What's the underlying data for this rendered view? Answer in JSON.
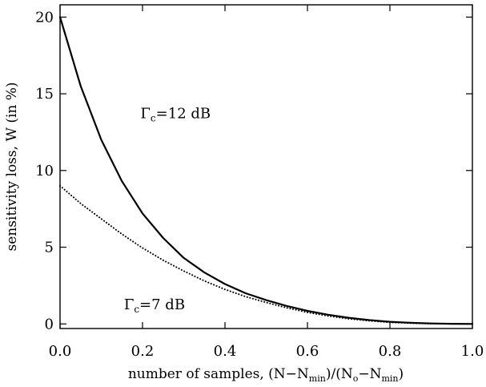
{
  "chart_data": {
    "type": "line",
    "title": "",
    "xlabel": "number of samples, (N−N_min)/(N_o−N_min)",
    "xlabel_parts": {
      "prefix": "number of samples, (N−N",
      "sub1": "min",
      "mid": ")/(N",
      "sub2": "o",
      "mid2": "−N",
      "sub3": "min",
      "suffix": ")"
    },
    "ylabel": "sensitivity loss, W (in %)",
    "xlim": [
      0.0,
      1.0
    ],
    "ylim": [
      -0.3,
      20.8
    ],
    "xticks": [
      0.0,
      0.2,
      0.4,
      0.6,
      0.8,
      1.0
    ],
    "xtick_labels": [
      "0.0",
      "0.2",
      "0.4",
      "0.6",
      "0.8",
      "1.0"
    ],
    "yticks": [
      0,
      5,
      10,
      15,
      20
    ],
    "ytick_labels": [
      "0",
      "5",
      "10",
      "15",
      "20"
    ],
    "grid": false,
    "legend": "none",
    "series": [
      {
        "style": "solid",
        "color": "#000000",
        "x": [
          0.0,
          0.05,
          0.1,
          0.15,
          0.2,
          0.25,
          0.3,
          0.35,
          0.4,
          0.45,
          0.5,
          0.55,
          0.6,
          0.65,
          0.7,
          0.75,
          0.8,
          0.85,
          0.9,
          0.95,
          1.0
        ],
        "y": [
          20.0,
          15.5,
          12.0,
          9.3,
          7.2,
          5.6,
          4.3,
          3.35,
          2.6,
          2.0,
          1.55,
          1.17,
          0.85,
          0.6,
          0.4,
          0.25,
          0.14,
          0.07,
          0.03,
          0.01,
          0.0
        ]
      },
      {
        "style": "dotted",
        "color": "#000000",
        "x": [
          0.0,
          0.05,
          0.1,
          0.15,
          0.2,
          0.25,
          0.3,
          0.35,
          0.4,
          0.45,
          0.5,
          0.55,
          0.6,
          0.65,
          0.7,
          0.75,
          0.8,
          0.85,
          0.9,
          0.95,
          1.0
        ],
        "y": [
          9.0,
          7.85,
          6.85,
          5.85,
          4.95,
          4.15,
          3.45,
          2.8,
          2.25,
          1.78,
          1.4,
          1.05,
          0.75,
          0.52,
          0.33,
          0.2,
          0.1,
          0.05,
          0.02,
          0.005,
          0.0
        ]
      }
    ],
    "annotations": [
      {
        "greek": "Γ",
        "sub": "c",
        "text": "=12  dB",
        "x": 0.195,
        "y": 13.4
      },
      {
        "greek": "Γ",
        "sub": "c",
        "text": "=7  dB",
        "x": 0.155,
        "y": 0.95
      }
    ]
  }
}
